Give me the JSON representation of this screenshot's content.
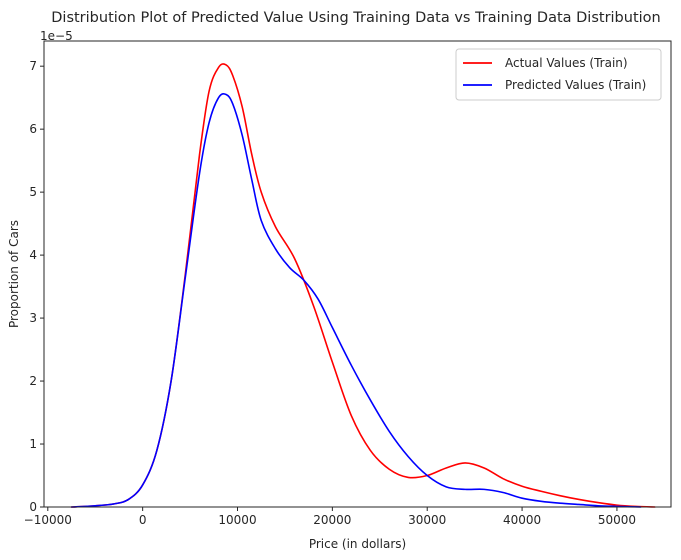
{
  "chart_data": {
    "type": "line",
    "title": "Distribution  Plot of  Predicted Value Using Training Data vs Training Data Distribution",
    "xlabel": "Price (in dollars)",
    "ylabel": "Proportion of Cars",
    "y_offset_label": "1e−5",
    "xlim": [
      -10400,
      55700
    ],
    "ylim": [
      0,
      7.4
    ],
    "x_ticks": [
      -10000,
      0,
      10000,
      20000,
      30000,
      40000,
      50000
    ],
    "x_tick_labels": [
      "−10000",
      "0",
      "10000",
      "20000",
      "30000",
      "40000",
      "50000"
    ],
    "y_ticks": [
      0,
      1,
      2,
      3,
      4,
      5,
      6,
      7
    ],
    "y_tick_labels": [
      "0",
      "1",
      "2",
      "3",
      "4",
      "5",
      "6",
      "7"
    ],
    "grid": false,
    "legend_position": "top-right",
    "series": [
      {
        "name": "Actual Values (Train)",
        "color": "#ff0000",
        "x": [
          -7500,
          -5000,
          -3000,
          -1500,
          0,
          1500,
          3000,
          4500,
          6000,
          7000,
          8000,
          8800,
          9500,
          10500,
          11500,
          12500,
          14000,
          16000,
          18000,
          20000,
          22000,
          24000,
          26000,
          28000,
          30000,
          32000,
          34000,
          36000,
          38000,
          40000,
          42000,
          44000,
          46000,
          48000,
          50000,
          52000,
          54000
        ],
        "values": [
          0.0,
          0.02,
          0.05,
          0.12,
          0.35,
          0.9,
          2.0,
          3.7,
          5.6,
          6.6,
          6.98,
          7.02,
          6.85,
          6.35,
          5.6,
          5.0,
          4.45,
          3.95,
          3.2,
          2.3,
          1.45,
          0.9,
          0.6,
          0.47,
          0.5,
          0.62,
          0.7,
          0.62,
          0.45,
          0.33,
          0.25,
          0.18,
          0.12,
          0.07,
          0.03,
          0.01,
          0.0
        ]
      },
      {
        "name": "Predicted Values (Train)",
        "color": "#0000ff",
        "x": [
          -7500,
          -5000,
          -3000,
          -1500,
          0,
          1500,
          3000,
          4500,
          6000,
          7000,
          8000,
          8800,
          9500,
          10500,
          11500,
          12500,
          14000,
          15500,
          17000,
          18500,
          20000,
          22000,
          24000,
          26000,
          28000,
          30000,
          32000,
          34000,
          36000,
          38000,
          40000,
          42000,
          44000,
          46000,
          48000,
          50000,
          52500
        ],
        "values": [
          0.0,
          0.02,
          0.05,
          0.12,
          0.35,
          0.9,
          2.0,
          3.65,
          5.3,
          6.1,
          6.5,
          6.55,
          6.4,
          5.9,
          5.2,
          4.55,
          4.1,
          3.8,
          3.6,
          3.3,
          2.85,
          2.25,
          1.7,
          1.2,
          0.8,
          0.5,
          0.32,
          0.28,
          0.28,
          0.23,
          0.14,
          0.09,
          0.06,
          0.04,
          0.02,
          0.01,
          0.0
        ]
      }
    ]
  }
}
